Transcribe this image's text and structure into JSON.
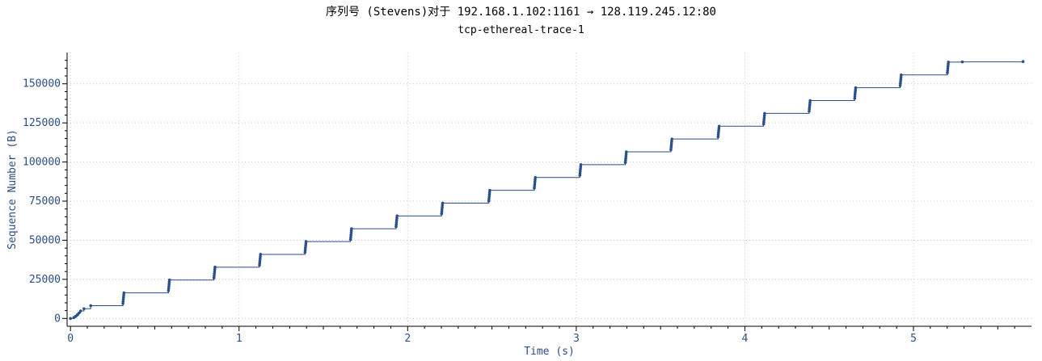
{
  "title": "序列号 (Stevens)对于 192.168.1.102:1161 → 128.119.245.12:80",
  "subtitle": "tcp-ethereal-trace-1",
  "chart_data": {
    "type": "scatter",
    "xlabel": "Time (s)",
    "ylabel": "Sequence Number (B)",
    "xlim": [
      -0.02,
      5.7
    ],
    "ylim": [
      -5000,
      170000
    ],
    "x_ticks": [
      "0",
      "1",
      "2",
      "3",
      "4",
      "5"
    ],
    "y_ticks": [
      "0",
      "25000",
      "50000",
      "75000",
      "100000",
      "125000",
      "150000"
    ],
    "grid": true,
    "step_times": [
      0.31,
      0.58,
      0.85,
      1.12,
      1.39,
      1.66,
      1.93,
      2.2,
      2.48,
      2.75,
      3.02,
      3.29,
      3.56,
      3.84,
      4.11,
      4.38,
      4.65,
      4.92,
      5.2
    ],
    "step_values": [
      8192,
      16384,
      24576,
      32768,
      40960,
      49152,
      57344,
      65536,
      73728,
      81920,
      90112,
      98304,
      106496,
      114688,
      122880,
      131072,
      139264,
      147456,
      155648,
      163840
    ],
    "initial_points": [
      [
        0.0,
        0
      ],
      [
        0.02,
        565
      ],
      [
        0.03,
        1300
      ],
      [
        0.04,
        2300
      ],
      [
        0.05,
        3500
      ],
      [
        0.06,
        4800
      ],
      [
        0.08,
        6200
      ],
      [
        0.12,
        8192
      ]
    ],
    "final_points": [
      [
        5.29,
        164000
      ],
      [
        5.65,
        164200
      ]
    ],
    "series": [
      {
        "color": "#2a4f8a"
      }
    ]
  }
}
